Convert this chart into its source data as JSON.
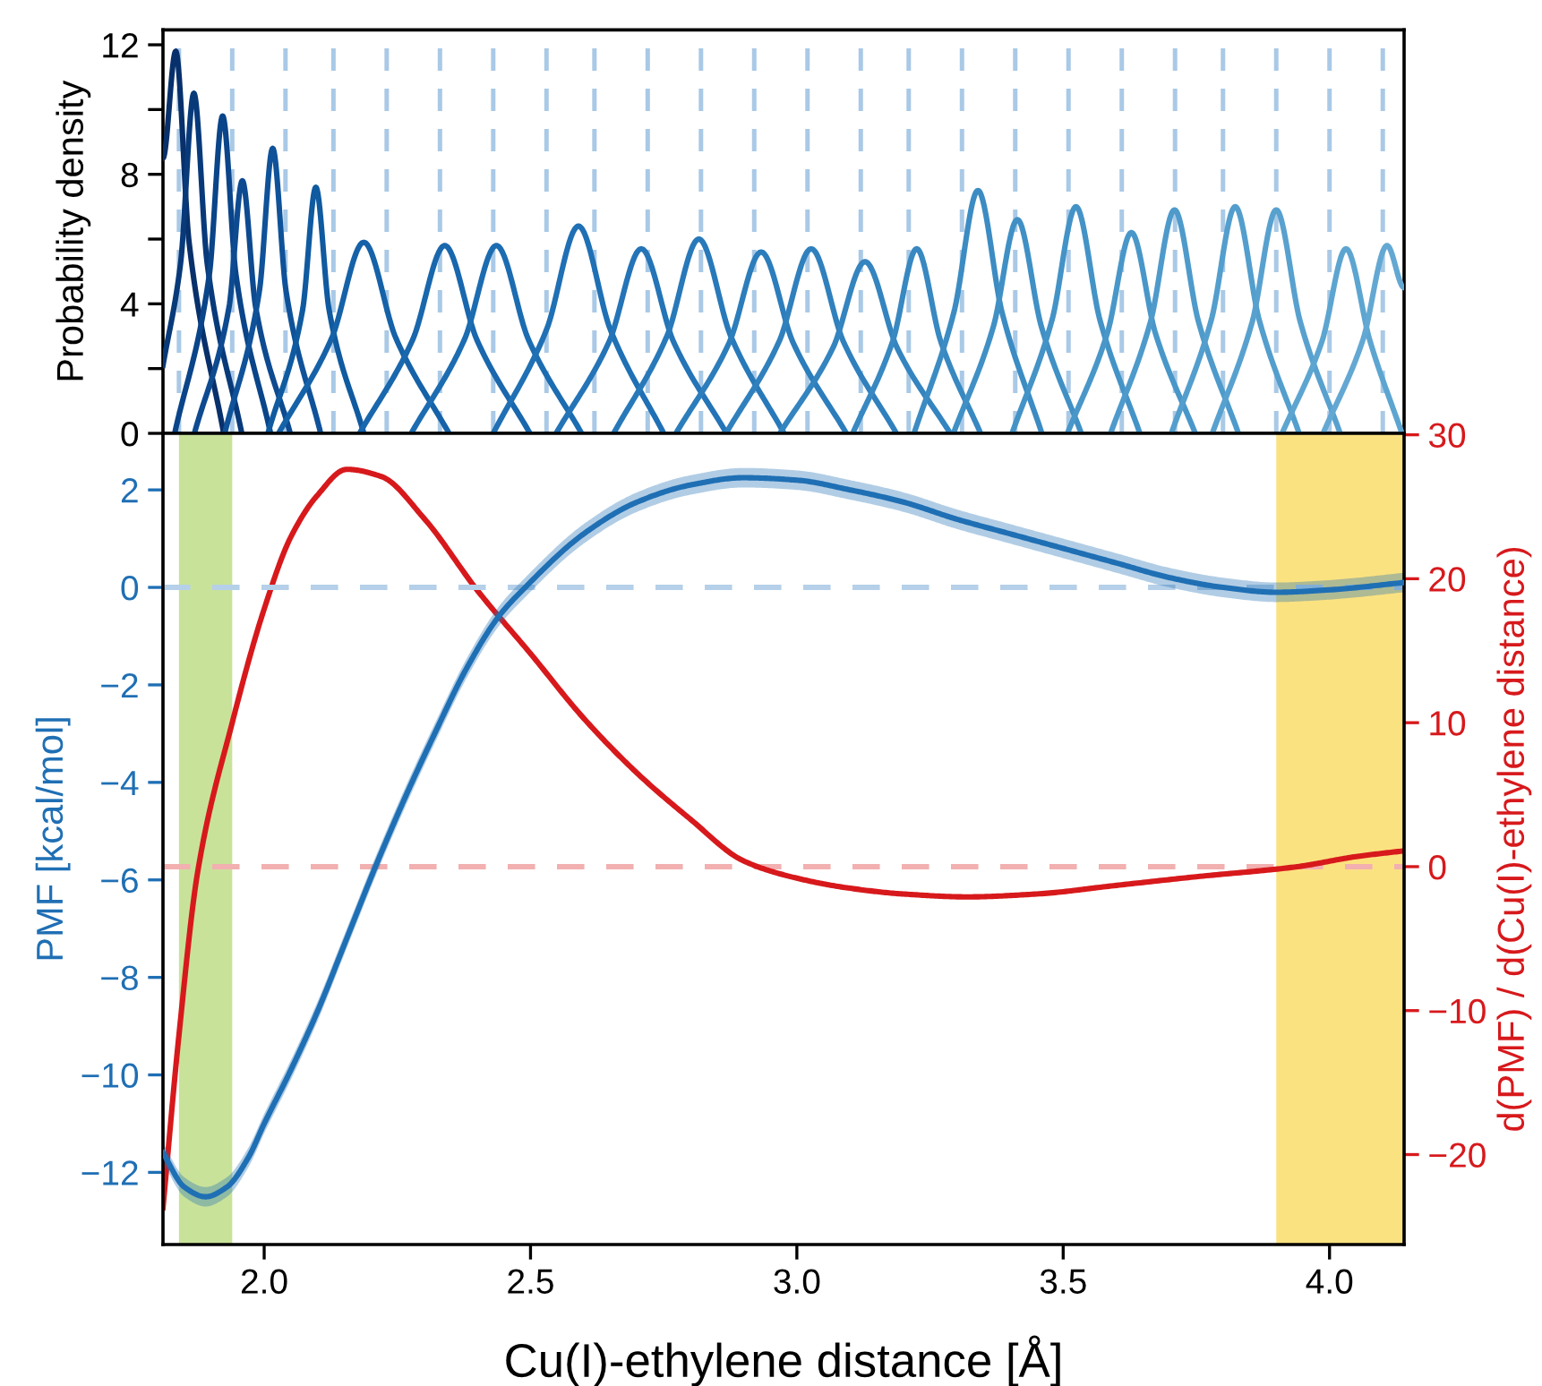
{
  "chart_data": [
    {
      "type": "line",
      "ylabel": "Probability density",
      "xlim": [
        1.81,
        4.14
      ],
      "ylim": [
        0,
        12.46
      ],
      "tick_labels": "y",
      "yticks": [
        0,
        {
          "value": 2,
          "label": null
        },
        4,
        {
          "value": 6,
          "label": null
        },
        8,
        {
          "value": 10,
          "label": null
        },
        12
      ],
      "series": [
        {
          "color": "#08306b",
          "x": [
            1.81,
            1.834,
            1.859,
            1.924
          ],
          "values": [
            8.5,
            11.8,
            5.9,
            0
          ]
        },
        {
          "color": "#083a7a",
          "x": [
            1.81,
            1.843,
            1.868,
            1.893,
            1.958
          ],
          "values": [
            2.1,
            5.25,
            10.5,
            5.25,
            0
          ]
        },
        {
          "color": "#0a4489",
          "x": [
            1.832,
            1.897,
            1.922,
            1.947,
            2.012
          ],
          "values": [
            0,
            4.9,
            9.8,
            4.9,
            0
          ]
        },
        {
          "color": "#0d4a90",
          "x": [
            1.869,
            1.934,
            1.959,
            1.984,
            2.049
          ],
          "values": [
            0,
            3.9,
            7.8,
            3.9,
            0
          ]
        },
        {
          "color": "#0f5299",
          "x": [
            1.926,
            1.991,
            2.016,
            2.041,
            2.106
          ],
          "values": [
            0,
            4.4,
            8.8,
            4.4,
            0
          ]
        },
        {
          "color": "#105aa0",
          "x": [
            2.007,
            2.072,
            2.097,
            2.122,
            2.187
          ],
          "values": [
            0,
            3.8,
            7.6,
            3.8,
            0
          ]
        },
        {
          "color": "#1562a8",
          "x": [
            2.027,
            2.127,
            2.187,
            2.247,
            2.347
          ],
          "values": [
            0,
            2.95,
            5.9,
            2.95,
            0
          ]
        },
        {
          "color": "#1967ad",
          "x": [
            2.179,
            2.279,
            2.339,
            2.399,
            2.499
          ],
          "values": [
            0,
            2.9,
            5.8,
            2.9,
            0
          ]
        },
        {
          "color": "#1c6cb1",
          "x": [
            2.276,
            2.376,
            2.436,
            2.496,
            2.596
          ],
          "values": [
            0,
            2.9,
            5.8,
            2.9,
            0
          ]
        },
        {
          "color": "#1f70b4",
          "x": [
            2.43,
            2.53,
            2.59,
            2.65,
            2.75
          ],
          "values": [
            0,
            3.2,
            6.4,
            3.2,
            0
          ]
        },
        {
          "color": "#2474b7",
          "x": [
            2.548,
            2.648,
            2.708,
            2.768,
            2.868
          ],
          "values": [
            0,
            2.85,
            5.7,
            2.85,
            0
          ]
        },
        {
          "color": "#2879b9",
          "x": [
            2.656,
            2.756,
            2.816,
            2.876,
            2.976
          ],
          "values": [
            0,
            3,
            6,
            3,
            0
          ]
        },
        {
          "color": "#2c7dbb",
          "x": [
            2.773,
            2.873,
            2.933,
            2.993,
            3.093
          ],
          "values": [
            0,
            2.8,
            5.6,
            2.8,
            0
          ]
        },
        {
          "color": "#3080bd",
          "x": [
            2.867,
            2.967,
            3.027,
            3.087,
            3.187
          ],
          "values": [
            0,
            2.85,
            5.7,
            2.85,
            0
          ]
        },
        {
          "color": "#3484bf",
          "x": [
            2.968,
            3.068,
            3.128,
            3.188,
            3.288
          ],
          "values": [
            0,
            2.65,
            5.3,
            2.65,
            0
          ]
        },
        {
          "color": "#3888c1",
          "x": [
            3.105,
            3.18,
            3.225,
            3.27,
            3.345
          ],
          "values": [
            0,
            2.85,
            5.7,
            2.85,
            0
          ]
        },
        {
          "color": "#3c8cc3",
          "x": [
            3.22,
            3.295,
            3.34,
            3.385,
            3.46
          ],
          "values": [
            0,
            3.75,
            7.5,
            3.75,
            0
          ]
        },
        {
          "color": "#4090c5",
          "x": [
            3.294,
            3.369,
            3.414,
            3.459,
            3.534
          ],
          "values": [
            0,
            3.3,
            6.6,
            3.3,
            0
          ]
        },
        {
          "color": "#4493c7",
          "x": [
            3.404,
            3.479,
            3.524,
            3.569,
            3.644
          ],
          "values": [
            0,
            3.5,
            7.0,
            3.5,
            0
          ]
        },
        {
          "color": "#4997c9",
          "x": [
            3.508,
            3.583,
            3.628,
            3.673,
            3.748
          ],
          "values": [
            0,
            3.1,
            6.2,
            3.1,
            0
          ]
        },
        {
          "color": "#4e9acb",
          "x": [
            3.589,
            3.664,
            3.709,
            3.754,
            3.829
          ],
          "values": [
            0,
            3.45,
            6.9,
            3.45,
            0
          ]
        },
        {
          "color": "#539ecd",
          "x": [
            3.703,
            3.778,
            3.823,
            3.868,
            3.943
          ],
          "values": [
            0,
            3.5,
            7.0,
            3.5,
            0
          ]
        },
        {
          "color": "#58a1cf",
          "x": [
            3.78,
            3.855,
            3.9,
            3.945,
            4.02
          ],
          "values": [
            0,
            3.45,
            6.9,
            3.45,
            0
          ]
        },
        {
          "color": "#5da5d1",
          "x": [
            3.911,
            3.986,
            4.031,
            4.076,
            4.136
          ],
          "values": [
            0,
            2.85,
            5.7,
            2.85,
            0
          ]
        },
        {
          "color": "#63a8d3",
          "x": [
            3.988,
            4.063,
            4.108,
            4.14
          ],
          "values": [
            0,
            2.9,
            5.8,
            4.5
          ]
        }
      ],
      "ref_lines": [
        {
          "axis": "x",
          "value": 1.84,
          "color": "#a9c9e6",
          "line_style": "dashed"
        },
        {
          "axis": "x",
          "value": 1.94,
          "color": "#a9c9e6",
          "line_style": "dashed"
        },
        {
          "axis": "x",
          "value": 2.04,
          "color": "#a9c9e6",
          "line_style": "dashed"
        },
        {
          "axis": "x",
          "value": 2.13,
          "color": "#a9c9e6",
          "line_style": "dashed"
        },
        {
          "axis": "x",
          "value": 2.23,
          "color": "#a9c9e6",
          "line_style": "dashed"
        },
        {
          "axis": "x",
          "value": 2.33,
          "color": "#a9c9e6",
          "line_style": "dashed"
        },
        {
          "axis": "x",
          "value": 2.43,
          "color": "#a9c9e6",
          "line_style": "dashed"
        },
        {
          "axis": "x",
          "value": 2.53,
          "color": "#a9c9e6",
          "line_style": "dashed"
        },
        {
          "axis": "x",
          "value": 2.62,
          "color": "#a9c9e6",
          "line_style": "dashed"
        },
        {
          "axis": "x",
          "value": 2.72,
          "color": "#a9c9e6",
          "line_style": "dashed"
        },
        {
          "axis": "x",
          "value": 2.82,
          "color": "#a9c9e6",
          "line_style": "dashed"
        },
        {
          "axis": "x",
          "value": 2.92,
          "color": "#a9c9e6",
          "line_style": "dashed"
        },
        {
          "axis": "x",
          "value": 3.02,
          "color": "#a9c9e6",
          "line_style": "dashed"
        },
        {
          "axis": "x",
          "value": 3.12,
          "color": "#a9c9e6",
          "line_style": "dashed"
        },
        {
          "axis": "x",
          "value": 3.21,
          "color": "#a9c9e6",
          "line_style": "dashed"
        },
        {
          "axis": "x",
          "value": 3.31,
          "color": "#a9c9e6",
          "line_style": "dashed"
        },
        {
          "axis": "x",
          "value": 3.41,
          "color": "#a9c9e6",
          "line_style": "dashed"
        },
        {
          "axis": "x",
          "value": 3.51,
          "color": "#a9c9e6",
          "line_style": "dashed"
        },
        {
          "axis": "x",
          "value": 3.61,
          "color": "#a9c9e6",
          "line_style": "dashed"
        },
        {
          "axis": "x",
          "value": 3.71,
          "color": "#a9c9e6",
          "line_style": "dashed"
        },
        {
          "axis": "x",
          "value": 3.8,
          "color": "#a9c9e6",
          "line_style": "dashed"
        },
        {
          "axis": "x",
          "value": 3.9,
          "color": "#a9c9e6",
          "line_style": "dashed"
        },
        {
          "axis": "x",
          "value": 4.0,
          "color": "#a9c9e6",
          "line_style": "dashed"
        },
        {
          "axis": "x",
          "value": 4.1,
          "color": "#a9c9e6",
          "line_style": "dashed"
        }
      ]
    },
    {
      "type": "line",
      "xlabel": "Cu(I)-ethylene distance [Å]",
      "ylabel": "PMF [kcal/mol]",
      "y2label": "d(PMF) / d(Cu(I)-ethylene distance)",
      "xlim": [
        1.81,
        4.14
      ],
      "ylim": [
        -13.48,
        3.16
      ],
      "y2lim": [
        -26.25,
        30.1
      ],
      "xticks": [
        {
          "value": 2.0,
          "label": "2.0"
        },
        {
          "value": 2.5,
          "label": "2.5"
        },
        {
          "value": 3.0,
          "label": "3.0"
        },
        {
          "value": 3.5,
          "label": "3.5"
        },
        {
          "value": 4.0,
          "label": "4.0"
        }
      ],
      "yticks": [
        {
          "value": -12,
          "label": "−12"
        },
        {
          "value": -10,
          "label": "−10"
        },
        {
          "value": -8,
          "label": "−8"
        },
        {
          "value": -6,
          "label": "−6"
        },
        {
          "value": -4,
          "label": "−4"
        },
        {
          "value": -2,
          "label": "−2"
        },
        0,
        2
      ],
      "y2ticks": [
        {
          "value": -20,
          "label": "−20"
        },
        {
          "value": -10,
          "label": "−10"
        },
        0,
        10,
        20,
        30
      ],
      "bands": [
        {
          "axis": "x",
          "from": 1.84,
          "to": 1.94,
          "color": "#c9e29a"
        },
        {
          "axis": "x",
          "from": 3.9,
          "to": 4.14,
          "color": "#fbe281"
        }
      ],
      "ref_lines": [
        {
          "axis": "y",
          "value": 0,
          "color": "#b5d0e8",
          "line_style": "dashed"
        },
        {
          "axis": "y2",
          "value": 0,
          "color": "#f2b0b0",
          "line_style": "dashed"
        }
      ],
      "series": [
        {
          "color": "#1f6fb4",
          "x": [
            1.81,
            1.85,
            1.89,
            1.93,
            1.97,
            2.0,
            2.05,
            2.1,
            2.155,
            2.21,
            2.267,
            2.32,
            2.38,
            2.44,
            2.49,
            2.6,
            2.7,
            2.8,
            2.9,
            3.0,
            3.1,
            3.2,
            3.3,
            3.4,
            3.5,
            3.6,
            3.7,
            3.8,
            3.9,
            4.0,
            4.14
          ],
          "values": [
            -11.6,
            -12.3,
            -12.5,
            -12.3,
            -11.7,
            -11.0,
            -9.9,
            -8.7,
            -7.2,
            -5.7,
            -4.25,
            -3.0,
            -1.66,
            -0.6,
            0.0,
            1.1,
            1.75,
            2.1,
            2.25,
            2.2,
            2.0,
            1.75,
            1.4,
            1.1,
            0.8,
            0.5,
            0.2,
            0.0,
            -0.1,
            -0.05,
            0.1
          ],
          "lower": [
            -11.8,
            -12.5,
            -12.7,
            -12.5,
            -11.9,
            -11.2,
            -10.1,
            -8.9,
            -7.4,
            -5.9,
            -4.45,
            -3.2,
            -1.86,
            -0.8,
            -0.2,
            0.9,
            1.55,
            1.9,
            2.05,
            2.0,
            1.8,
            1.55,
            1.2,
            0.9,
            0.6,
            0.3,
            0.0,
            -0.2,
            -0.3,
            -0.25,
            -0.1
          ],
          "upper": [
            -11.4,
            -12.1,
            -12.3,
            -12.1,
            -11.5,
            -10.8,
            -9.7,
            -8.5,
            -7.0,
            -5.5,
            -4.05,
            -2.8,
            -1.46,
            -0.4,
            0.2,
            1.3,
            1.95,
            2.3,
            2.45,
            2.4,
            2.2,
            1.95,
            1.6,
            1.3,
            1.0,
            0.7,
            0.4,
            0.2,
            0.1,
            0.15,
            0.3
          ]
        },
        {
          "color": "#d7191c",
          "axis": "y2",
          "x": [
            1.81,
            1.84,
            1.875,
            1.94,
            2.0,
            2.05,
            2.1,
            2.155,
            2.22,
            2.3,
            2.4,
            2.5,
            2.6,
            2.7,
            2.8,
            2.9,
            3.0,
            3.1,
            3.2,
            3.32,
            3.45,
            3.6,
            3.75,
            3.94,
            4.05,
            4.14
          ],
          "values": [
            -23.7,
            -11.7,
            -0.4,
            10,
            17.9,
            22.9,
            25.8,
            27.6,
            27.1,
            24.2,
            19.2,
            14.8,
            10.3,
            6.5,
            3.3,
            0.4,
            -0.8,
            -1.5,
            -1.9,
            -2.1,
            -1.9,
            -1.3,
            -0.7,
            0,
            0.7,
            1.1
          ]
        }
      ]
    }
  ]
}
